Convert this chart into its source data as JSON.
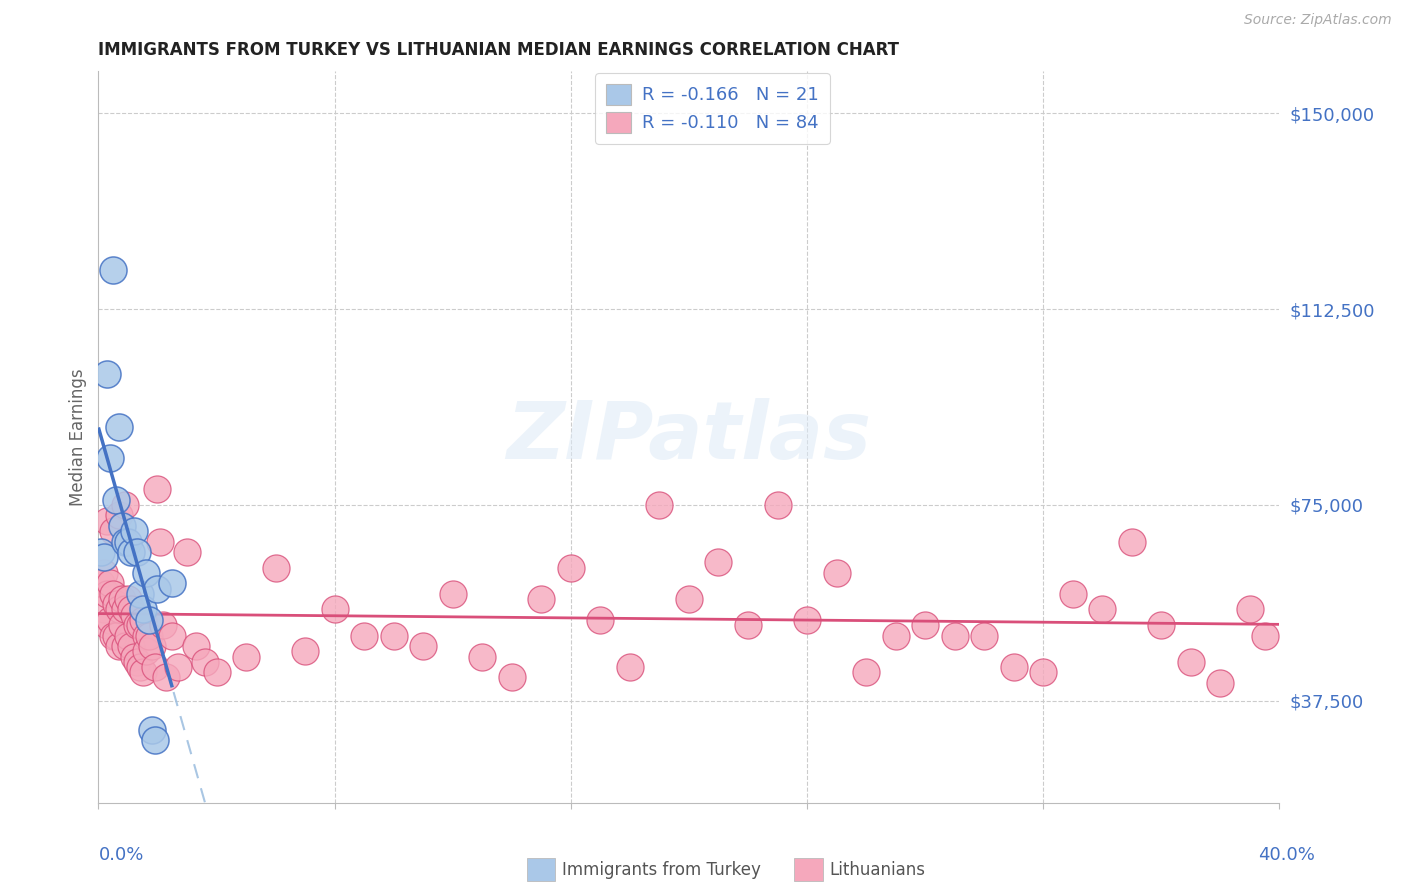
{
  "title": "IMMIGRANTS FROM TURKEY VS LITHUANIAN MEDIAN EARNINGS CORRELATION CHART",
  "source": "Source: ZipAtlas.com",
  "ylabel": "Median Earnings",
  "xmin": 0.0,
  "xmax": 0.4,
  "ymin": 18000,
  "ymax": 158000,
  "watermark": "ZIPatlas",
  "legend_r1": "-0.166",
  "legend_n1": "21",
  "legend_r2": "-0.110",
  "legend_n2": "84",
  "color_turkey": "#aac8e8",
  "color_lithuania": "#f5a8bc",
  "color_turkey_line": "#4472c4",
  "color_lithuania_line": "#d94f7a",
  "color_dashed": "#a0c0e0",
  "color_blue": "#4472c4",
  "grid_color": "#cccccc",
  "turkey_x": [
    0.001,
    0.002,
    0.003,
    0.004,
    0.005,
    0.006,
    0.007,
    0.008,
    0.009,
    0.01,
    0.011,
    0.012,
    0.013,
    0.014,
    0.015,
    0.016,
    0.017,
    0.018,
    0.019,
    0.02,
    0.025
  ],
  "turkey_y": [
    66000,
    65000,
    100000,
    84000,
    120000,
    76000,
    90000,
    71000,
    68000,
    68000,
    66000,
    70000,
    66000,
    58000,
    55000,
    62000,
    53000,
    32000,
    30000,
    59000,
    60000
  ],
  "lithuania_x": [
    0.001,
    0.002,
    0.002,
    0.003,
    0.003,
    0.004,
    0.004,
    0.005,
    0.005,
    0.006,
    0.006,
    0.007,
    0.007,
    0.008,
    0.008,
    0.009,
    0.009,
    0.01,
    0.01,
    0.011,
    0.011,
    0.012,
    0.012,
    0.013,
    0.013,
    0.014,
    0.014,
    0.015,
    0.015,
    0.016,
    0.016,
    0.017,
    0.018,
    0.019,
    0.02,
    0.021,
    0.022,
    0.023,
    0.025,
    0.027,
    0.03,
    0.033,
    0.036,
    0.04,
    0.05,
    0.06,
    0.07,
    0.08,
    0.09,
    0.1,
    0.11,
    0.12,
    0.13,
    0.14,
    0.15,
    0.16,
    0.17,
    0.18,
    0.19,
    0.2,
    0.21,
    0.22,
    0.23,
    0.24,
    0.25,
    0.26,
    0.27,
    0.28,
    0.29,
    0.3,
    0.31,
    0.32,
    0.33,
    0.34,
    0.35,
    0.36,
    0.37,
    0.38,
    0.39,
    0.395,
    0.003,
    0.005,
    0.007,
    0.009
  ],
  "lithuania_y": [
    60000,
    62000,
    55000,
    58000,
    52000,
    60000,
    53000,
    58000,
    50000,
    56000,
    50000,
    55000,
    48000,
    57000,
    52000,
    55000,
    48000,
    57000,
    50000,
    55000,
    48000,
    54000,
    46000,
    52000,
    45000,
    52000,
    44000,
    53000,
    43000,
    50000,
    47000,
    50000,
    48000,
    44000,
    78000,
    68000,
    52000,
    42000,
    50000,
    44000,
    66000,
    48000,
    45000,
    43000,
    46000,
    63000,
    47000,
    55000,
    50000,
    50000,
    48000,
    58000,
    46000,
    42000,
    57000,
    63000,
    53000,
    44000,
    75000,
    57000,
    64000,
    52000,
    75000,
    53000,
    62000,
    43000,
    50000,
    52000,
    50000,
    50000,
    44000,
    43000,
    58000,
    55000,
    68000,
    52000,
    45000,
    41000,
    55000,
    50000,
    72000,
    70000,
    73000,
    75000
  ]
}
